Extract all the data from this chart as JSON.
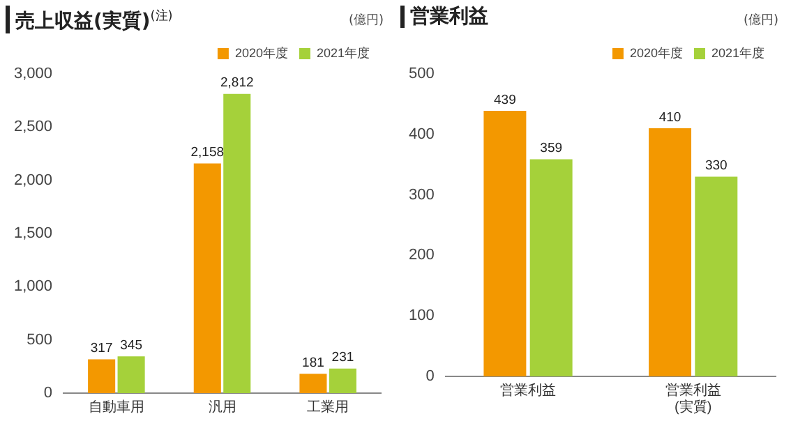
{
  "chart_data": [
    {
      "type": "bar",
      "title": "売上収益(実質)$^{(注)}$",
      "ylabel": "(億円)",
      "categories": [
        "自動車用",
        "汎用",
        "工業用"
      ],
      "series": [
        {
          "name": "2020年度",
          "color": "#f39800",
          "values": [
            317,
            2158,
            181
          ],
          "value_labels": [
            "317",
            "2,158",
            "181"
          ]
        },
        {
          "name": "2021年度",
          "color": "#a5d13a",
          "values": [
            345,
            2812,
            231
          ],
          "value_labels": [
            "345",
            "2,812",
            "231"
          ]
        }
      ],
      "ylim": [
        0,
        3000
      ],
      "yticks": [
        0,
        500,
        {
          "value": 1000,
          "label": "1,000"
        },
        {
          "value": 1500,
          "label": "1,500"
        },
        {
          "value": 2000,
          "label": "2,000"
        },
        {
          "value": 2500,
          "label": "2,500"
        },
        {
          "value": 3000,
          "label": "3,000"
        }
      ],
      "legend": "top right"
    },
    {
      "type": "bar",
      "title": "営業利益",
      "ylabel": "(億円)",
      "categories": [
        "営業利益",
        "営業利益\n(実質)"
      ],
      "series": [
        {
          "name": "2020年度",
          "color": "#f39800",
          "values": [
            439,
            410
          ]
        },
        {
          "name": "2021年度",
          "color": "#a5d13a",
          "values": [
            359,
            330
          ]
        }
      ],
      "ylim": [
        0,
        500
      ],
      "yticks": [
        0,
        100,
        200,
        300,
        400,
        500
      ],
      "data_labels": true,
      "legend": "top right"
    }
  ]
}
